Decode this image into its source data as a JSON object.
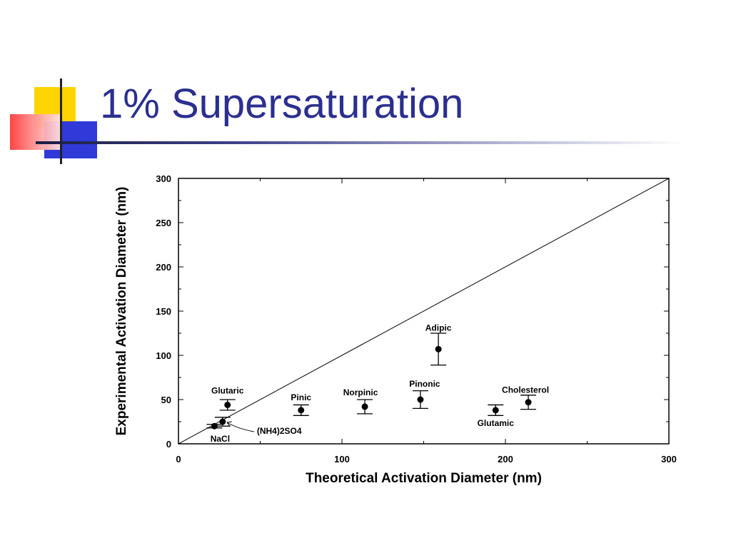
{
  "slide": {
    "title": "1% Supersaturation"
  },
  "colors": {
    "title": "#2b2f8f",
    "accent_yellow": "#ffd400",
    "accent_blue": "#2f3ad8",
    "accent_red": "#ff3b3b"
  },
  "chart_data": {
    "type": "scatter",
    "xlabel": "Theoretical Activation Diameter (nm)",
    "ylabel": "Experimental Activation Diameter (nm)",
    "xlim": [
      0,
      300
    ],
    "ylim": [
      0,
      300
    ],
    "x_ticks": [
      0,
      100,
      200,
      300
    ],
    "y_ticks": [
      0,
      50,
      100,
      150,
      200,
      250,
      300
    ],
    "grid": false,
    "reference_line": {
      "from": [
        0,
        0
      ],
      "to": [
        300,
        300
      ]
    },
    "points": [
      {
        "label": "Glutaric",
        "x": 30,
        "y": 44,
        "err": 6
      },
      {
        "label": "(NH4)2SO4",
        "x": 27,
        "y": 25,
        "err": 5
      },
      {
        "label": "NaCl",
        "x": 22,
        "y": 20,
        "err": 2
      },
      {
        "label": "Pinic",
        "x": 75,
        "y": 38,
        "err": 6
      },
      {
        "label": "Norpinic",
        "x": 114,
        "y": 42,
        "err": 8
      },
      {
        "label": "Pinonic",
        "x": 148,
        "y": 50,
        "err": 10
      },
      {
        "label": "Adipic",
        "x": 159,
        "y": 107,
        "err": 18
      },
      {
        "label": "Glutamic",
        "x": 194,
        "y": 38,
        "err": 6
      },
      {
        "label": "Cholesterol",
        "x": 214,
        "y": 47,
        "err": 8
      }
    ]
  }
}
